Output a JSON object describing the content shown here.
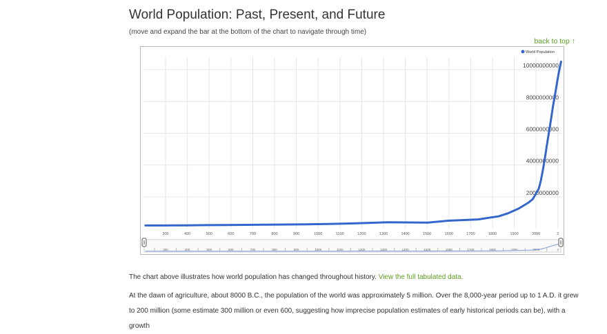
{
  "page": {
    "title": "World Population: Past, Present, and Future",
    "subtitle": "(move and expand the bar at the bottom of the chart to navigate through time)",
    "back_to_top": "back to top ↑",
    "para1_text": "The chart above illustrates how world population has changed throughout history.",
    "para1_link": "View the full tabulated data.",
    "para2": "At the dawn of agriculture, about 8000 B.C., the population of the world was approximately 5 million. Over the 8,000-year period up to 1 A.D. it grew to 200 million (some estimate 300 million or even 600, suggesting how imprecise population estimates of early historical periods can be), with a growth"
  },
  "colors": {
    "line": "#3366cc",
    "grid": "#e6e6e6",
    "text": "#333333",
    "link": "#5a9e1f"
  },
  "chart_data": {
    "type": "line",
    "legend": "World Population",
    "legend_position": "top-right",
    "grid": true,
    "x_ticks": [
      "300",
      "400",
      "500",
      "600",
      "700",
      "800",
      "900",
      "1000",
      "1100",
      "1200",
      "1300",
      "1400",
      "1500",
      "1600",
      "1700",
      "1800",
      "1900",
      "2000",
      "2"
    ],
    "y_ticks": [
      "2000000000",
      "4000000000",
      "6000000000",
      "8000000000",
      "10000000000"
    ],
    "ylim": [
      0,
      11000000000
    ],
    "series": [
      {
        "name": "World Population",
        "x": [
          1,
          100,
          200,
          300,
          400,
          500,
          600,
          700,
          800,
          900,
          1000,
          1100,
          1200,
          1300,
          1400,
          1500,
          1600,
          1650,
          1700,
          1750,
          1800,
          1850,
          1900,
          1920,
          1940,
          1950,
          1960,
          1970,
          1980,
          1990,
          2000,
          2010,
          2020,
          2030,
          2040,
          2050,
          2060
        ],
        "y": [
          200000000,
          200000000,
          210000000,
          220000000,
          230000000,
          240000000,
          250000000,
          260000000,
          270000000,
          290000000,
          320000000,
          360000000,
          400000000,
          390000000,
          380000000,
          500000000,
          550000000,
          580000000,
          680000000,
          770000000,
          980000000,
          1260000000,
          1650000000,
          1860000000,
          2300000000,
          2520000000,
          3020000000,
          3700000000,
          4440000000,
          5270000000,
          6070000000,
          6850000000,
          7700000000,
          8400000000,
          9200000000,
          9900000000,
          10500000000
        ]
      }
    ],
    "navigator_ticks": [
      "300",
      "400",
      "500",
      "600",
      "700",
      "800",
      "900",
      "1000",
      "1100",
      "1200",
      "1300",
      "1400",
      "1500",
      "1600",
      "1700",
      "1800",
      "1900",
      "2000",
      "2"
    ]
  }
}
